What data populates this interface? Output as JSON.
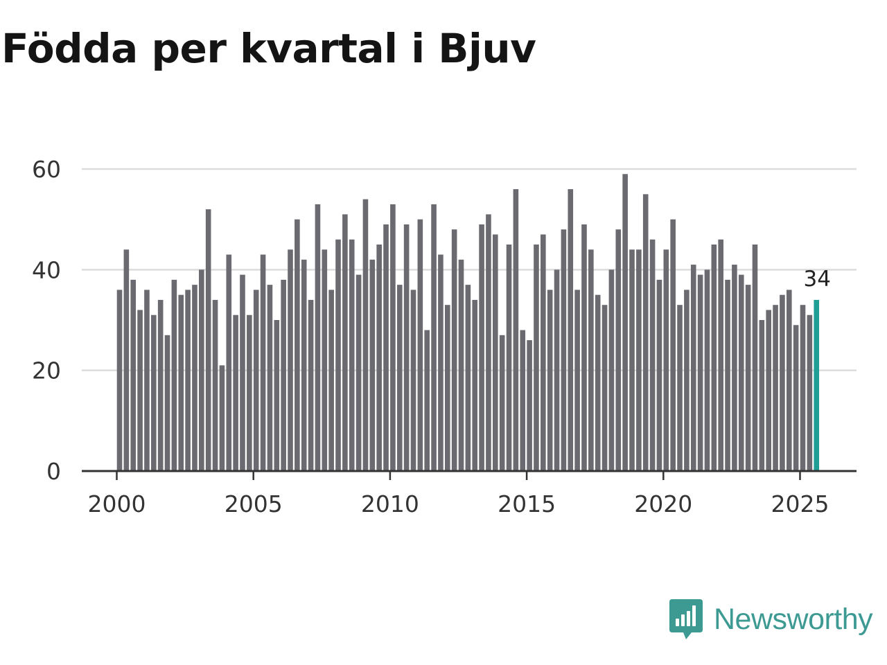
{
  "colors": {
    "bar": "#6b6a70",
    "highlight": "#1f9e96",
    "grid": "#dcdcdc",
    "axis": "#333333",
    "brand": "#3d9a93"
  },
  "brand": {
    "name": "Newsworthy",
    "icon": "newsworthy-logo-icon"
  },
  "chart_data": {
    "type": "bar",
    "title": "Födda per kvartal i Bjuv",
    "xlabel": "",
    "ylabel": "",
    "ylim": [
      0,
      60
    ],
    "yticks": [
      0,
      20,
      40,
      60
    ],
    "xtick_labels": [
      "2000",
      "2005",
      "2010",
      "2015",
      "2020",
      "2025"
    ],
    "start_year": 2000,
    "highlight_last": true,
    "last_value_label": "34",
    "values": [
      36,
      44,
      38,
      32,
      36,
      31,
      34,
      27,
      38,
      35,
      36,
      37,
      40,
      52,
      34,
      21,
      43,
      31,
      39,
      31,
      36,
      43,
      37,
      30,
      38,
      44,
      50,
      42,
      34,
      53,
      44,
      36,
      46,
      51,
      46,
      39,
      54,
      42,
      45,
      49,
      53,
      37,
      49,
      36,
      50,
      28,
      53,
      43,
      33,
      48,
      42,
      37,
      34,
      49,
      51,
      47,
      27,
      45,
      56,
      28,
      26,
      45,
      47,
      36,
      40,
      48,
      56,
      36,
      49,
      44,
      35,
      33,
      40,
      48,
      59,
      44,
      44,
      55,
      46,
      38,
      44,
      50,
      33,
      36,
      41,
      39,
      40,
      45,
      46,
      38,
      41,
      39,
      37,
      45,
      30,
      32,
      33,
      35,
      36,
      29,
      33,
      31,
      34
    ]
  }
}
